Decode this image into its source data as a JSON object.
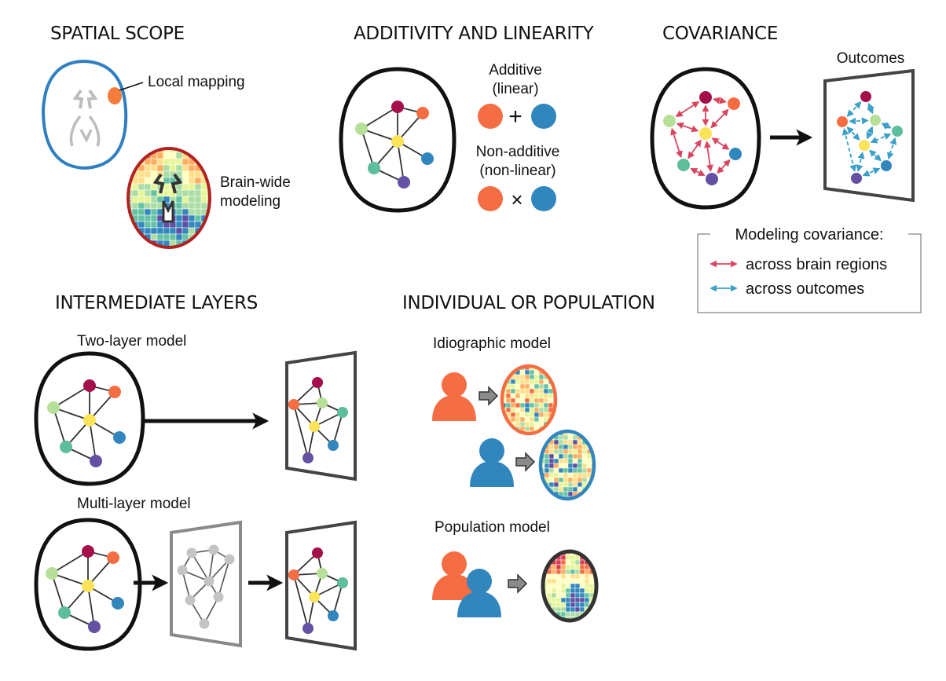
{
  "headings": {
    "spatial_scope": "SPATIAL SCOPE",
    "additivity": "ADDITIVITY AND LINEARITY",
    "covariance": "COVARIANCE",
    "intermediate": "INTERMEDIATE LAYERS",
    "individual": "INDIVIDUAL OR POPULATION"
  },
  "spatial": {
    "local_label": "Local mapping",
    "brainwide_label_1": "Brain-wide",
    "brainwide_label_2": "modeling"
  },
  "additivity": {
    "additive_1": "Additive",
    "additive_2": "(linear)",
    "plus": "+",
    "nonadditive_1": "Non-additive",
    "nonadditive_2": "(non-linear)",
    "times": "×"
  },
  "covariance": {
    "outcomes_label": "Outcomes",
    "legend_title": "Modeling covariance:",
    "legend_regions": "across brain regions",
    "legend_outcomes": "across outcomes"
  },
  "intermediate": {
    "two_layer_label": "Two-layer model",
    "multi_layer_label": "Multi-layer model"
  },
  "individual": {
    "idiographic_label": "Idiographic model",
    "population_label": "Population model"
  },
  "colors": {
    "orange": "#f46d43",
    "blue": "#3186bd",
    "crimson": "#a50f4a",
    "light_green": "#b6df98",
    "yellow": "#fbe35a",
    "teal": "#5cbe9a",
    "purple": "#6451a3",
    "red_arrow": "#d9455f",
    "blue_arrow": "#3aa0c8",
    "grey_node": "#c4c4c4"
  }
}
